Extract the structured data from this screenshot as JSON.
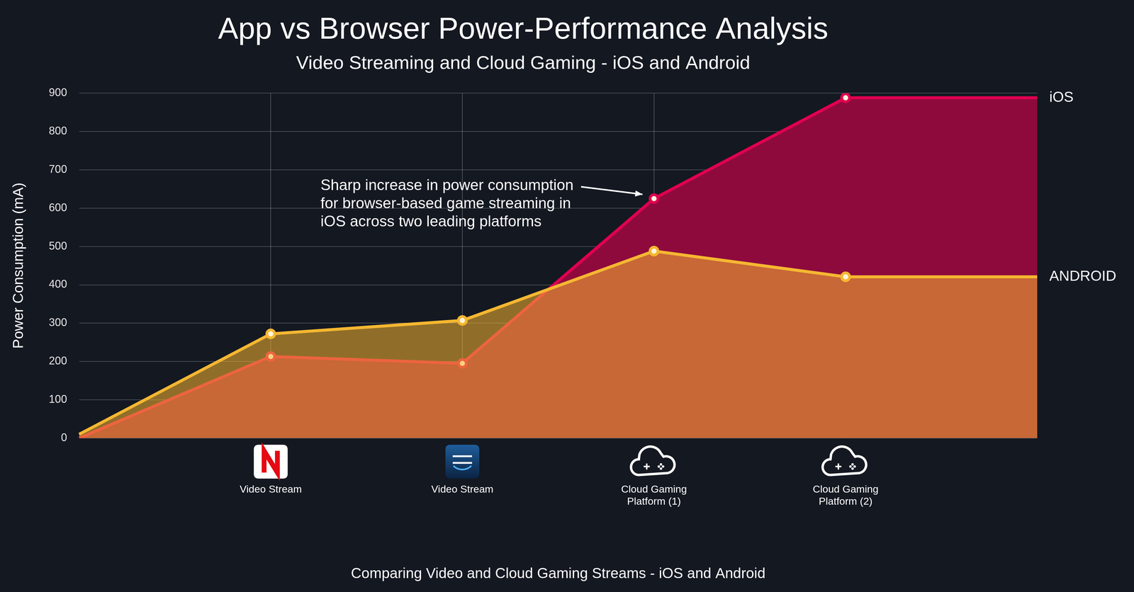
{
  "chart_data": {
    "type": "line",
    "title": "App vs Browser Power-Performance Analysis",
    "subtitle": "Video Streaming and Cloud Gaming - iOS and Android",
    "x_label": "Comparing Video and Cloud Gaming Streams - iOS and Android",
    "y_label": "Power Consumption (mA)",
    "annotations": [
      {
        "text": [
          "Sharp increase in power consumption",
          "for browser-based game streaming in",
          "iOS across two leading platforms"
        ]
      }
    ],
    "categories": [
      null,
      "Video Stream",
      "Video Stream",
      "Cloud Gaming Platform (1)",
      "Cloud Gaming Platform (2)",
      null
    ],
    "series": [
      {
        "name": "iOS",
        "color": "#e0004f",
        "values": [
          0,
          213,
          195,
          625,
          888,
          888
        ]
      },
      {
        "name": "ANDROID",
        "color": "#f5b731",
        "values": [
          10,
          272,
          307,
          488,
          421,
          421
        ]
      }
    ],
    "ylim": [
      0,
      900
    ],
    "yticks": [
      0,
      100,
      200,
      300,
      400,
      500,
      600,
      700,
      800,
      900
    ],
    "grid": true,
    "marker": "circle"
  }
}
